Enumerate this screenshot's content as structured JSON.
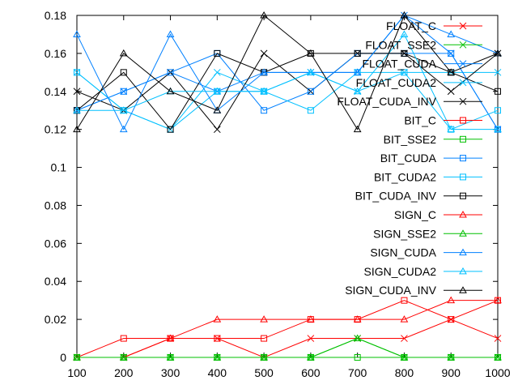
{
  "chart_data": {
    "type": "line",
    "title": "",
    "xlabel": "",
    "ylabel": "",
    "x": [
      100,
      200,
      300,
      400,
      500,
      600,
      700,
      800,
      900,
      1000
    ],
    "xticks": [
      "100",
      "200",
      "300",
      "400",
      "500",
      "600",
      "700",
      "800",
      "900",
      "1000"
    ],
    "yticks": [
      "0",
      "0.02",
      "0.04",
      "0.06",
      "0.08",
      "0.1",
      "0.12",
      "0.14",
      "0.16",
      "0.18"
    ],
    "xlim": [
      100,
      1000
    ],
    "ylim": [
      0,
      0.18
    ],
    "grid": false,
    "legend_position": "top-right",
    "series": [
      {
        "name": "FLOAT_C",
        "color": "#ff0000",
        "marker": "x",
        "values": [
          0,
          0,
          0.01,
          0.01,
          0,
          0.01,
          0.01,
          0.01,
          0.02,
          0.01
        ]
      },
      {
        "name": "FLOAT_SSE2",
        "color": "#00c000",
        "marker": "x",
        "values": [
          0,
          0,
          0,
          0,
          0,
          0,
          0.01,
          0,
          0,
          0
        ]
      },
      {
        "name": "FLOAT_CUDA",
        "color": "#0080ff",
        "marker": "x",
        "values": [
          0.13,
          0.14,
          0.15,
          0.14,
          0.15,
          0.15,
          0.15,
          0.18,
          0.16,
          0.12
        ]
      },
      {
        "name": "FLOAT_CUDA2",
        "color": "#00c0ff",
        "marker": "x",
        "values": [
          0.15,
          0.13,
          0.12,
          0.15,
          0.14,
          0.15,
          0.14,
          0.15,
          0.15,
          0.15
        ]
      },
      {
        "name": "FLOAT_CUDA_INV",
        "color": "#000000",
        "marker": "x",
        "values": [
          0.14,
          0.13,
          0.15,
          0.12,
          0.16,
          0.14,
          0.16,
          0.16,
          0.14,
          0.16
        ]
      },
      {
        "name": "BIT_C",
        "color": "#ff0000",
        "marker": "square",
        "values": [
          0,
          0.01,
          0.01,
          0.01,
          0.01,
          0.02,
          0.02,
          0.03,
          0.02,
          0.03
        ]
      },
      {
        "name": "BIT_SSE2",
        "color": "#00c000",
        "marker": "square",
        "values": [
          0,
          0,
          0,
          0,
          0,
          0,
          0,
          0,
          0,
          0
        ]
      },
      {
        "name": "BIT_CUDA",
        "color": "#0080ff",
        "marker": "square",
        "values": [
          0.13,
          0.14,
          0.15,
          0.16,
          0.13,
          0.14,
          0.16,
          0.16,
          0.16,
          0.12
        ]
      },
      {
        "name": "BIT_CUDA2",
        "color": "#00c0ff",
        "marker": "square",
        "values": [
          0.15,
          0.13,
          0.12,
          0.14,
          0.14,
          0.13,
          0.15,
          0.15,
          0.12,
          0.13
        ]
      },
      {
        "name": "BIT_CUDA_INV",
        "color": "#000000",
        "marker": "square",
        "values": [
          0.13,
          0.15,
          0.12,
          0.16,
          0.15,
          0.16,
          0.16,
          0.16,
          0.15,
          0.14
        ]
      },
      {
        "name": "SIGN_C",
        "color": "#ff0000",
        "marker": "triangle",
        "values": [
          0,
          0,
          0.01,
          0.02,
          0.02,
          0.02,
          0.02,
          0.02,
          0.03,
          0.03
        ]
      },
      {
        "name": "SIGN_SSE2",
        "color": "#00c000",
        "marker": "triangle",
        "values": [
          0,
          0,
          0,
          0,
          0,
          0,
          0.01,
          0,
          0,
          0
        ]
      },
      {
        "name": "SIGN_CUDA",
        "color": "#0080ff",
        "marker": "triangle",
        "values": [
          0.17,
          0.12,
          0.17,
          0.13,
          0.15,
          0.15,
          0.15,
          0.18,
          0.17,
          0.16
        ]
      },
      {
        "name": "SIGN_CUDA2",
        "color": "#00c0ff",
        "marker": "triangle",
        "values": [
          0.13,
          0.13,
          0.14,
          0.14,
          0.14,
          0.15,
          0.14,
          0.17,
          0.12,
          0.12
        ]
      },
      {
        "name": "SIGN_CUDA_INV",
        "color": "#000000",
        "marker": "triangle",
        "values": [
          0.12,
          0.16,
          0.14,
          0.13,
          0.18,
          0.16,
          0.12,
          0.18,
          0.15,
          0.16
        ]
      }
    ]
  }
}
